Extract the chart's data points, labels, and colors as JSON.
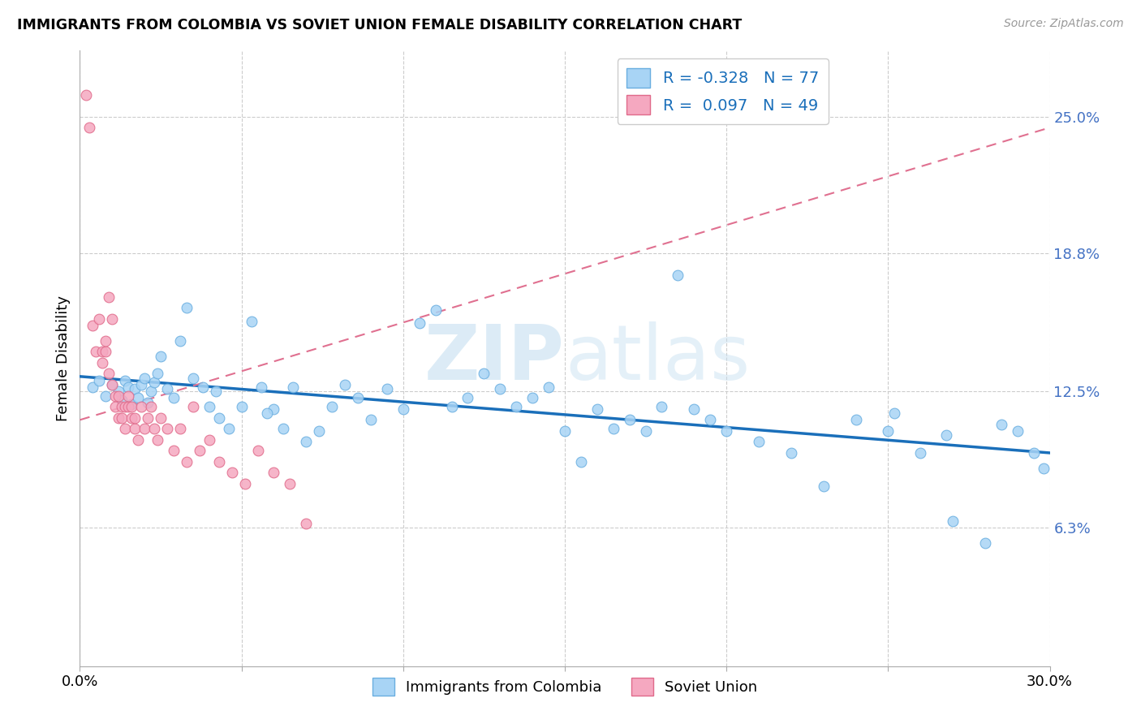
{
  "title": "IMMIGRANTS FROM COLOMBIA VS SOVIET UNION FEMALE DISABILITY CORRELATION CHART",
  "source": "Source: ZipAtlas.com",
  "ylabel": "Female Disability",
  "xlim": [
    0.0,
    0.3
  ],
  "ylim": [
    0.0,
    0.28
  ],
  "xticks": [
    0.0,
    0.05,
    0.1,
    0.15,
    0.2,
    0.25,
    0.3
  ],
  "xtick_labels": [
    "0.0%",
    "",
    "",
    "",
    "",
    "",
    "30.0%"
  ],
  "ytick_positions": [
    0.063,
    0.125,
    0.188,
    0.25
  ],
  "ytick_labels": [
    "6.3%",
    "12.5%",
    "18.8%",
    "25.0%"
  ],
  "colombia_color": "#a8d4f5",
  "soviet_color": "#f5a8c0",
  "colombia_edge": "#6aaee0",
  "soviet_edge": "#e06a8a",
  "trend_colombia_color": "#1a6fba",
  "trend_soviet_color": "#e07090",
  "R_colombia": -0.328,
  "N_colombia": 77,
  "R_soviet": 0.097,
  "N_soviet": 49,
  "watermark_zip": "ZIP",
  "watermark_atlas": "atlas",
  "colombia_x": [
    0.004,
    0.006,
    0.008,
    0.01,
    0.012,
    0.013,
    0.014,
    0.015,
    0.016,
    0.017,
    0.018,
    0.019,
    0.02,
    0.021,
    0.022,
    0.023,
    0.024,
    0.025,
    0.027,
    0.029,
    0.031,
    0.033,
    0.035,
    0.038,
    0.04,
    0.043,
    0.046,
    0.05,
    0.053,
    0.056,
    0.06,
    0.063,
    0.066,
    0.07,
    0.074,
    0.078,
    0.082,
    0.086,
    0.09,
    0.095,
    0.1,
    0.105,
    0.11,
    0.115,
    0.12,
    0.125,
    0.13,
    0.135,
    0.14,
    0.145,
    0.15,
    0.155,
    0.16,
    0.165,
    0.17,
    0.175,
    0.18,
    0.185,
    0.19,
    0.195,
    0.2,
    0.21,
    0.22,
    0.23,
    0.24,
    0.25,
    0.26,
    0.27,
    0.28,
    0.285,
    0.29,
    0.295,
    0.298,
    0.252,
    0.268,
    0.042,
    0.058
  ],
  "colombia_y": [
    0.127,
    0.13,
    0.123,
    0.128,
    0.125,
    0.121,
    0.13,
    0.127,
    0.119,
    0.126,
    0.122,
    0.128,
    0.131,
    0.12,
    0.125,
    0.129,
    0.133,
    0.141,
    0.126,
    0.122,
    0.148,
    0.163,
    0.131,
    0.127,
    0.118,
    0.113,
    0.108,
    0.118,
    0.157,
    0.127,
    0.117,
    0.108,
    0.127,
    0.102,
    0.107,
    0.118,
    0.128,
    0.122,
    0.112,
    0.126,
    0.117,
    0.156,
    0.162,
    0.118,
    0.122,
    0.133,
    0.126,
    0.118,
    0.122,
    0.127,
    0.107,
    0.093,
    0.117,
    0.108,
    0.112,
    0.107,
    0.118,
    0.178,
    0.117,
    0.112,
    0.107,
    0.102,
    0.097,
    0.082,
    0.112,
    0.107,
    0.097,
    0.066,
    0.056,
    0.11,
    0.107,
    0.097,
    0.09,
    0.115,
    0.105,
    0.125,
    0.115
  ],
  "soviet_x": [
    0.002,
    0.003,
    0.004,
    0.005,
    0.006,
    0.007,
    0.007,
    0.008,
    0.008,
    0.009,
    0.009,
    0.01,
    0.01,
    0.011,
    0.011,
    0.012,
    0.012,
    0.013,
    0.013,
    0.014,
    0.014,
    0.015,
    0.015,
    0.016,
    0.016,
    0.017,
    0.017,
    0.018,
    0.019,
    0.02,
    0.021,
    0.022,
    0.023,
    0.024,
    0.025,
    0.027,
    0.029,
    0.031,
    0.033,
    0.035,
    0.037,
    0.04,
    0.043,
    0.047,
    0.051,
    0.055,
    0.06,
    0.065,
    0.07
  ],
  "soviet_y": [
    0.26,
    0.245,
    0.155,
    0.143,
    0.158,
    0.143,
    0.138,
    0.143,
    0.148,
    0.133,
    0.168,
    0.158,
    0.128,
    0.123,
    0.118,
    0.113,
    0.123,
    0.118,
    0.113,
    0.118,
    0.108,
    0.118,
    0.123,
    0.113,
    0.118,
    0.108,
    0.113,
    0.103,
    0.118,
    0.108,
    0.113,
    0.118,
    0.108,
    0.103,
    0.113,
    0.108,
    0.098,
    0.108,
    0.093,
    0.118,
    0.098,
    0.103,
    0.093,
    0.088,
    0.083,
    0.098,
    0.088,
    0.083,
    0.065
  ],
  "sov_trend_x0": 0.0,
  "sov_trend_x1": 0.3,
  "sov_trend_y0": 0.112,
  "sov_trend_y1": 0.245
}
